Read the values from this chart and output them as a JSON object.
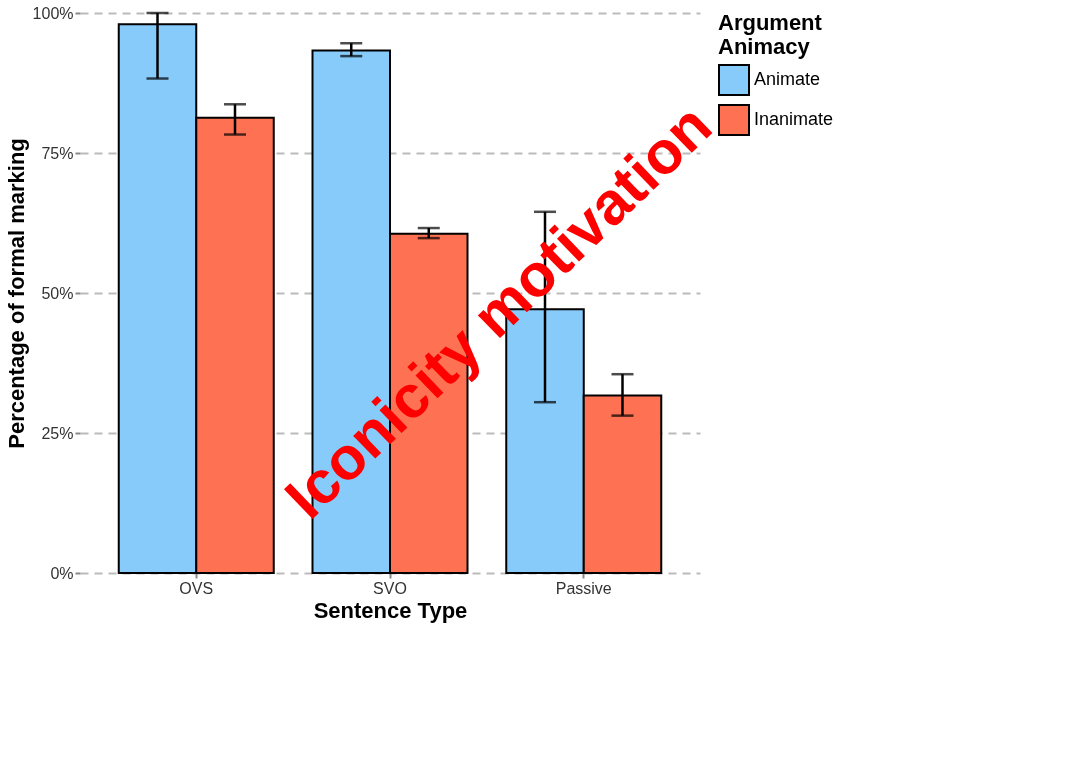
{
  "chart_data": {
    "type": "bar",
    "xlabel": "Sentence Type",
    "ylabel": "Percentage of formal marking",
    "legend_title": "Argument\nAnimacy",
    "categories": [
      "OVS",
      "SVO",
      "Passive"
    ],
    "series": [
      {
        "name": "Animate",
        "color": "#87cbfb",
        "values": [
          98,
          93.3,
          47.1
        ],
        "errors": [
          [
            88.3,
            100
          ],
          [
            92.3,
            94.6
          ],
          [
            30.5,
            64.5
          ]
        ]
      },
      {
        "name": "Inanimate",
        "color": "#ff7153",
        "values": [
          81.3,
          60.6,
          31.7
        ],
        "errors": [
          [
            78.3,
            83.7
          ],
          [
            59.8,
            61.6
          ],
          [
            28.1,
            35.5
          ]
        ]
      }
    ],
    "ylim": [
      0,
      100
    ],
    "yticks": [
      {
        "value": 0,
        "label": "0%"
      },
      {
        "value": 25,
        "label": "25%"
      },
      {
        "value": 50,
        "label": "50%"
      },
      {
        "value": 75,
        "label": "75%"
      },
      {
        "value": 100,
        "label": "100%"
      }
    ],
    "grid": "y",
    "legend": "right",
    "annotations": [
      "Iconicity motivation"
    ]
  }
}
